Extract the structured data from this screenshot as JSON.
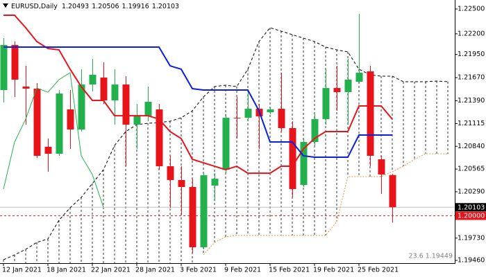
{
  "chart_data": {
    "type": "candlestick",
    "title": "EURUSD,Daily",
    "categories": [
      "12 Jan 2021",
      null,
      null,
      null,
      "18 Jan 2021",
      null,
      null,
      null,
      "22 Jan 2021",
      null,
      null,
      null,
      "28 Jan 2021",
      null,
      null,
      null,
      "3 Feb 2021",
      null,
      null,
      null,
      "9 Feb 2021",
      null,
      null,
      null,
      "15 Feb 2021",
      null,
      null,
      null,
      "19 Feb 2021",
      null,
      null,
      null,
      "25 Feb 2021",
      null,
      null,
      null,
      null,
      null,
      null,
      null,
      null
    ],
    "open": [
      1.2152,
      1.22065,
      1.21562,
      1.21537,
      1.20834,
      1.2075,
      1.21286,
      1.21043,
      1.21587,
      1.21671,
      1.21395,
      1.21587,
      1.21102,
      1.21202,
      1.21286,
      1.20599,
      1.20432,
      1.20348,
      1.19619,
      1.20365,
      1.20557,
      1.21185,
      1.21185,
      1.21294,
      1.21252,
      1.21294,
      1.2106,
      1.20373,
      1.20892,
      1.21169,
      1.21545,
      1.21495,
      1.21621,
      1.21746,
      1.20683,
      1.20493,
      null,
      null,
      null,
      null,
      null
    ],
    "high": [
      1.22148,
      1.22107,
      1.21813,
      1.21604,
      1.20934,
      1.2152,
      1.2152,
      1.21772,
      1.21897,
      1.21855,
      1.21772,
      1.21688,
      1.21353,
      1.21562,
      1.21353,
      1.20725,
      1.20599,
      1.20448,
      1.20515,
      1.20515,
      1.21227,
      1.21437,
      1.2152,
      1.21353,
      1.21311,
      1.2173,
      1.21143,
      1.20934,
      1.21227,
      1.21772,
      1.21813,
      1.21897,
      1.22442,
      1.21813,
      1.20725,
      1.20506,
      null,
      null,
      null,
      null,
      null
    ],
    "low": [
      1.2137,
      1.21437,
      1.21102,
      1.207,
      1.20532,
      1.20725,
      1.20808,
      1.21018,
      1.21504,
      1.21353,
      1.21102,
      1.20599,
      1.20808,
      1.21143,
      1.20557,
      1.20097,
      1.20013,
      1.19552,
      1.19594,
      1.2018,
      1.20515,
      1.20934,
      1.21143,
      1.20808,
      1.21227,
      1.21018,
      1.20222,
      1.20348,
      1.2085,
      1.21102,
      1.21269,
      1.21102,
      1.21604,
      1.20599,
      1.20264,
      1.19916,
      null,
      null,
      null,
      null,
      null
    ],
    "close": [
      1.22065,
      1.21646,
      1.21537,
      1.20725,
      1.2075,
      1.21478,
      1.21043,
      1.21587,
      1.21705,
      1.21395,
      1.21587,
      1.21102,
      1.21202,
      1.21378,
      1.20599,
      1.20432,
      1.20348,
      1.19619,
      1.2049,
      1.20448,
      1.21185,
      1.21177,
      1.21294,
      1.21202,
      1.21286,
      1.2106,
      1.20323,
      1.20892,
      1.21169,
      1.21545,
      1.21495,
      1.21646,
      1.2173,
      1.20725,
      1.20499,
      1.20103,
      null,
      null,
      null,
      null,
      null
    ],
    "up_color": "#22b14c",
    "down_color": "#e8141b",
    "series": [
      {
        "color": "#e8141b",
        "style": "solid",
        "values": [
          1.22425,
          1.22425,
          1.22274,
          1.22107,
          1.22023,
          1.22006,
          1.21772,
          1.21562,
          1.21395,
          1.21395,
          1.2121,
          1.2121,
          1.2121,
          1.2121,
          1.21169,
          1.21018,
          1.20934,
          1.20683,
          1.20641,
          1.20599,
          1.20557,
          1.20599,
          1.20515,
          1.20515,
          1.20515,
          1.20599,
          1.20599,
          1.20808,
          1.20934,
          1.21018,
          1.21018,
          1.21018,
          1.21328,
          1.21328,
          1.21328,
          1.21169,
          null,
          null,
          null,
          null,
          null
        ]
      },
      {
        "color": "#0a1ee0",
        "style": "solid",
        "values": [
          1.2204,
          1.2204,
          1.2204,
          1.2204,
          1.2204,
          1.2204,
          1.2204,
          1.2204,
          1.2204,
          1.2204,
          1.2204,
          1.2204,
          1.2204,
          1.2204,
          1.2204,
          1.21813,
          1.21772,
          1.21537,
          1.2152,
          1.2152,
          1.2152,
          1.2152,
          1.2152,
          1.21269,
          1.20892,
          1.20892,
          1.20892,
          1.20725,
          1.20708,
          1.20708,
          1.20708,
          1.20708,
          1.20976,
          1.20976,
          1.20976,
          1.20976,
          null,
          null,
          null,
          null,
          null
        ]
      },
      {
        "color": "#22b14c",
        "style": "thin",
        "values": [
          1.20323,
          1.20892,
          1.21169,
          1.21545,
          1.21495,
          1.21646,
          1.2173,
          1.20725,
          1.20499,
          1.20103,
          null,
          null,
          null,
          null,
          null,
          null,
          null,
          null,
          null,
          null,
          null,
          null,
          null,
          null,
          null,
          null,
          null,
          null,
          null,
          null,
          null,
          null,
          null,
          null,
          null,
          null,
          null,
          null,
          null,
          null,
          null
        ]
      },
      {
        "color": "#000000",
        "style": "dashed",
        "values": [
          1.19468,
          1.19527,
          1.19594,
          1.19678,
          1.1972,
          1.19946,
          1.20097,
          1.20222,
          1.2039,
          1.20557,
          1.2085,
          1.21018,
          1.21102,
          1.21118,
          1.21127,
          1.21143,
          1.21185,
          1.21269,
          1.21437,
          1.21562,
          1.21579,
          1.21562,
          1.21772,
          1.22107,
          1.22274,
          1.22232,
          1.2219,
          1.22148,
          1.22107,
          1.2204,
          1.22006,
          1.21981,
          1.21772,
          1.21705,
          1.21688,
          1.21688,
          1.21621,
          1.21621,
          1.21621,
          1.21629,
          1.21621
        ]
      },
      {
        "color": "#e8913a",
        "style": "dotted",
        "values": [
          null,
          null,
          null,
          null,
          null,
          null,
          null,
          null,
          null,
          null,
          null,
          null,
          null,
          null,
          null,
          null,
          null,
          null,
          1.19527,
          1.19678,
          1.19745,
          1.19762,
          1.19762,
          1.19762,
          1.19762,
          1.19762,
          1.19762,
          1.19762,
          1.19762,
          1.19762,
          1.19929,
          1.20473,
          1.20473,
          1.20473,
          1.20473,
          1.20532,
          1.20599,
          1.20683,
          1.2075,
          1.2075,
          1.2075
        ]
      }
    ],
    "cloud_color": "#000000",
    "ylim": [
      1.19427,
      1.22609
    ],
    "yticks": [
      {
        "value": 1.225,
        "label": "1.22500"
      },
      {
        "value": 1.222,
        "label": "1.22200"
      },
      {
        "value": 1.2195,
        "label": "1.21950"
      },
      {
        "value": 1.2167,
        "label": "1.21670"
      },
      {
        "value": 1.2139,
        "label": "1.21390"
      },
      {
        "value": 1.21115,
        "label": "1.21115"
      },
      {
        "value": 1.2084,
        "label": "1.20840"
      },
      {
        "value": 1.20565,
        "label": "1.20565"
      },
      {
        "value": 1.2029,
        "label": "1.20290"
      },
      {
        "value": 1.1973,
        "label": "1.19730"
      },
      {
        "value": 1.1946,
        "label": "1.19460"
      }
    ],
    "level": {
      "value": 1.2,
      "label": "1.20000",
      "color": "#e8141b"
    },
    "price_line_color": "#c0c0c0",
    "annotation": "23.6 1.19449",
    "grid": false
  }
}
